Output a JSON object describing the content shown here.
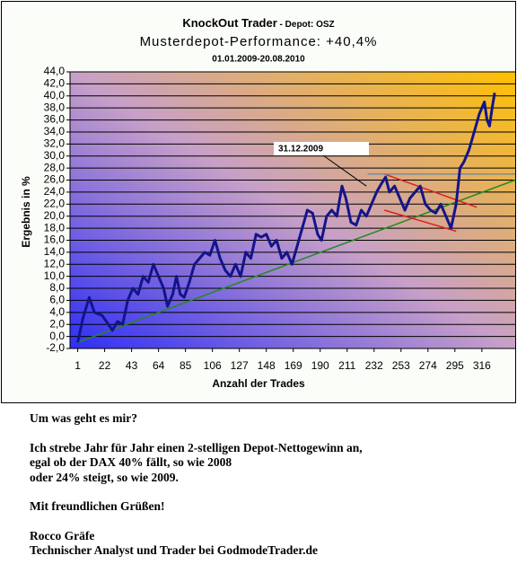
{
  "chart_data": {
    "type": "line",
    "title": "KnockOut Trader",
    "title_suffix": " - Depot: OSZ",
    "subtitle": "Musterdepot-Performance: +40,4%",
    "date_range": "01.01.2009-20.08.2010",
    "y_label": "Ergebnis in %",
    "x_label": "Anzahl der Trades",
    "xlim": [
      -5,
      342
    ],
    "xticks": [
      1,
      22,
      43,
      64,
      85,
      106,
      127,
      148,
      169,
      190,
      211,
      232,
      253,
      274,
      295,
      316
    ],
    "ylim": [
      -2,
      44
    ],
    "yticks": [
      {
        "value": -2,
        "label": "-2,0"
      },
      {
        "value": 0,
        "label": "0,0"
      },
      {
        "value": 2,
        "label": "2,0"
      },
      {
        "value": 4,
        "label": "4,0"
      },
      {
        "value": 6,
        "label": "6,0"
      },
      {
        "value": 8,
        "label": "8,0"
      },
      {
        "value": 10,
        "label": "10,0"
      },
      {
        "value": 12,
        "label": "12,0"
      },
      {
        "value": 14,
        "label": "14,0"
      },
      {
        "value": 16,
        "label": "16,0"
      },
      {
        "value": 18,
        "label": "18,0"
      },
      {
        "value": 20,
        "label": "20,0"
      },
      {
        "value": 22,
        "label": "22,0"
      },
      {
        "value": 24,
        "label": "24,0"
      },
      {
        "value": 26,
        "label": "26,0"
      },
      {
        "value": 28,
        "label": "28,0"
      },
      {
        "value": 30,
        "label": "30,0"
      },
      {
        "value": 32,
        "label": "32,0"
      },
      {
        "value": 34,
        "label": "34,0"
      },
      {
        "value": 36,
        "label": "36,0"
      },
      {
        "value": 38,
        "label": "38,0"
      },
      {
        "value": 40,
        "label": "40,0"
      },
      {
        "value": 42,
        "label": "42,0"
      },
      {
        "value": 44,
        "label": "44,0"
      }
    ],
    "grid": true,
    "series": [
      {
        "color": "#14148a",
        "x": [
          1,
          5,
          10,
          14,
          20,
          25,
          28,
          32,
          36,
          40,
          44,
          48,
          52,
          56,
          60,
          64,
          68,
          71,
          75,
          78,
          81,
          84,
          88,
          92,
          96,
          100,
          104,
          108,
          112,
          116,
          120,
          124,
          128,
          132,
          136,
          140,
          144,
          148,
          152,
          156,
          160,
          164,
          168,
          172,
          176,
          180,
          184,
          188,
          191,
          195,
          199,
          203,
          207,
          210,
          214,
          218,
          222,
          226,
          230,
          234,
          238,
          241,
          244,
          248,
          252,
          256,
          260,
          264,
          268,
          272,
          276,
          280,
          284,
          288,
          292,
          296,
          299,
          302,
          306,
          310,
          314,
          318,
          320,
          322,
          324,
          326
        ],
        "values": [
          -1,
          3,
          6.5,
          4,
          3.5,
          2,
          1,
          2.5,
          2,
          6,
          8,
          7,
          10,
          9,
          12,
          10,
          8,
          5,
          7,
          10,
          7,
          6.5,
          9,
          12,
          13,
          14,
          13.5,
          16,
          13,
          11,
          10,
          12,
          10,
          14,
          13,
          17,
          16.5,
          17,
          15,
          16,
          13,
          14,
          12,
          15,
          18,
          21,
          20.5,
          17,
          16,
          20,
          21,
          20,
          25,
          23,
          19,
          18.5,
          21,
          20,
          22,
          24,
          25.5,
          26.5,
          24,
          25,
          23,
          21,
          23,
          24,
          25,
          22,
          21,
          20.5,
          22,
          20,
          18,
          22,
          28,
          29,
          31,
          34,
          37,
          39,
          36,
          35,
          38,
          40.5
        ]
      }
    ],
    "lines": [
      {
        "color": "#228b22",
        "x": [
          1,
          342
        ],
        "values": [
          -1,
          26
        ]
      },
      {
        "color": "#e02020",
        "x": [
          240,
          312
        ],
        "values": [
          27,
          21.5
        ]
      },
      {
        "color": "#e02020",
        "x": [
          240,
          296
        ],
        "values": [
          21,
          17.5
        ]
      },
      {
        "color": "#7a8ca0",
        "x": [
          227,
          342
        ],
        "values": [
          27,
          27
        ]
      }
    ],
    "annotation": {
      "text": "31.12.2009",
      "x": 226,
      "value": 25
    }
  },
  "text_block": {
    "paragraphs": [
      [
        "Um was geht es mir?"
      ],
      [
        "Ich strebe Jahr für Jahr einen 2-stelligen Depot-Nettogewinn an,",
        "egal ob der DAX 40% fällt, so wie 2008",
        "oder 24% steigt, so wie 2009."
      ],
      [
        "Mit freundlichen Grüßen!"
      ],
      [
        "Rocco Gräfe",
        "Technischer Analyst und Trader bei GodmodeTrader.de"
      ]
    ]
  }
}
